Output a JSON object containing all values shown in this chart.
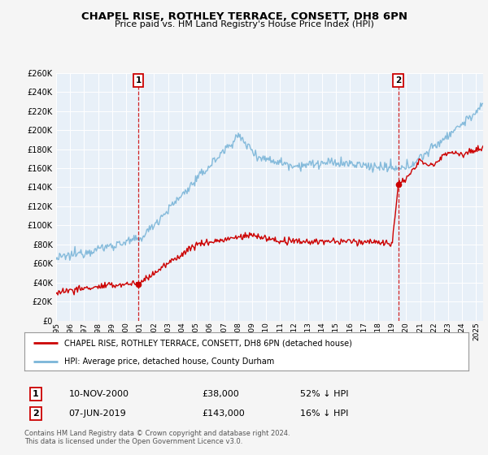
{
  "title": "CHAPEL RISE, ROTHLEY TERRACE, CONSETT, DH8 6PN",
  "subtitle": "Price paid vs. HM Land Registry's House Price Index (HPI)",
  "xlim": [
    1995.0,
    2025.5
  ],
  "ylim": [
    0,
    260000
  ],
  "yticks": [
    0,
    20000,
    40000,
    60000,
    80000,
    100000,
    120000,
    140000,
    160000,
    180000,
    200000,
    220000,
    240000,
    260000
  ],
  "xticks": [
    1995,
    1996,
    1997,
    1998,
    1999,
    2000,
    2001,
    2002,
    2003,
    2004,
    2005,
    2006,
    2007,
    2008,
    2009,
    2010,
    2011,
    2012,
    2013,
    2014,
    2015,
    2016,
    2017,
    2018,
    2019,
    2020,
    2021,
    2022,
    2023,
    2024,
    2025
  ],
  "hpi_color": "#7ab5d8",
  "price_color": "#cc0000",
  "marker_color": "#cc0000",
  "vline_color": "#cc0000",
  "annotation_box_color": "#cc0000",
  "background_color": "#f5f5f5",
  "plot_bg_color": "#e8f0f8",
  "grid_color": "#ffffff",
  "legend_label_red": "CHAPEL RISE, ROTHLEY TERRACE, CONSETT, DH8 6PN (detached house)",
  "legend_label_blue": "HPI: Average price, detached house, County Durham",
  "sale1_label": "1",
  "sale1_date": "10-NOV-2000",
  "sale1_price": "£38,000",
  "sale1_hpi": "52% ↓ HPI",
  "sale1_year": 2000.87,
  "sale1_value": 38000,
  "sale2_label": "2",
  "sale2_date": "07-JUN-2019",
  "sale2_price": "£143,000",
  "sale2_hpi": "16% ↓ HPI",
  "sale2_year": 2019.44,
  "sale2_value": 143000,
  "footnote1": "Contains HM Land Registry data © Crown copyright and database right 2024.",
  "footnote2": "This data is licensed under the Open Government Licence v3.0."
}
